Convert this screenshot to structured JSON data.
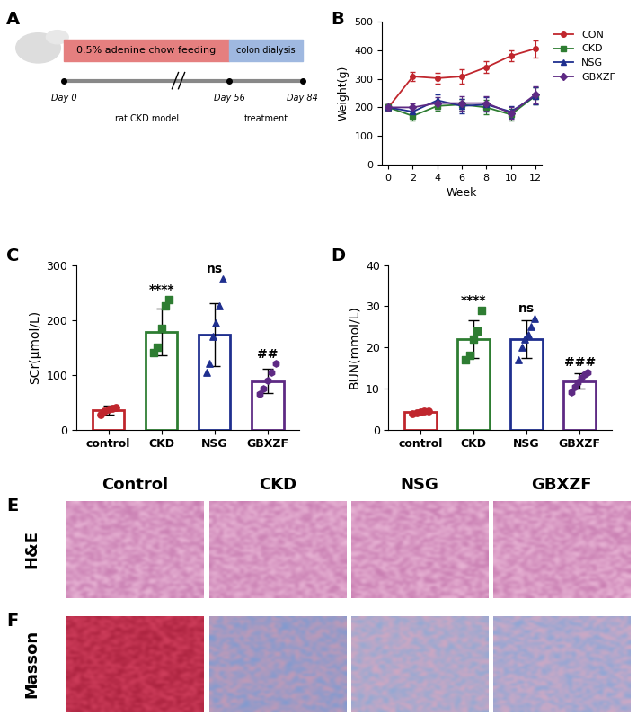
{
  "chart_data": [
    {
      "type": "line",
      "title": "B",
      "x_label": "Week",
      "y_label": "Weight(g)",
      "x": [
        0,
        2,
        4,
        6,
        8,
        10,
        12
      ],
      "xlim": [
        -0.5,
        12.5
      ],
      "xticks": [
        0,
        2,
        4,
        6,
        8,
        10,
        12
      ],
      "ylim": [
        0,
        500
      ],
      "yticks": [
        0,
        100,
        200,
        300,
        400,
        500
      ],
      "legend": "upper left",
      "grid": false,
      "series": [
        {
          "name": "CON",
          "color": "#c0262d",
          "marker": "o",
          "values": [
            200,
            308,
            302,
            308,
            340,
            380,
            405
          ],
          "errors": [
            10,
            15,
            20,
            25,
            20,
            20,
            30
          ]
        },
        {
          "name": "CKD",
          "color": "#2e7d32",
          "marker": "s",
          "values": [
            200,
            170,
            205,
            210,
            200,
            175,
            240
          ],
          "errors": [
            10,
            15,
            15,
            20,
            25,
            20,
            30
          ]
        },
        {
          "name": "NSG",
          "color": "#1f2f8f",
          "marker": "^",
          "values": [
            200,
            185,
            225,
            205,
            210,
            185,
            240
          ],
          "errors": [
            10,
            15,
            20,
            25,
            25,
            20,
            30
          ]
        },
        {
          "name": "GBXZF",
          "color": "#5e2a84",
          "marker": "D",
          "values": [
            200,
            200,
            215,
            215,
            215,
            180,
            245
          ],
          "errors": [
            10,
            15,
            20,
            25,
            25,
            20,
            30
          ]
        }
      ]
    },
    {
      "type": "bar",
      "title": "C",
      "y_label": "SCr(μmol/L)",
      "categories": [
        "control",
        "CKD",
        "NSG",
        "GBXZF"
      ],
      "values": [
        35,
        178,
        173,
        88
      ],
      "errors": [
        8,
        42,
        58,
        22
      ],
      "points": [
        [
          28,
          33,
          37,
          38,
          40
        ],
        [
          140,
          150,
          185,
          225,
          237
        ],
        [
          105,
          120,
          170,
          195,
          225,
          275
        ],
        [
          65,
          75,
          90,
          105,
          120
        ]
      ],
      "colors": [
        "#c0262d",
        "#2e7d32",
        "#1f2f8f",
        "#5e2a84"
      ],
      "ylim": [
        0,
        300
      ],
      "yticks": [
        0,
        100,
        200,
        300
      ],
      "grid": false,
      "annotations": [
        {
          "category": "CKD",
          "text": "****"
        },
        {
          "category": "NSG",
          "text": "ns"
        },
        {
          "category": "GBXZF",
          "text": "##"
        }
      ]
    },
    {
      "type": "bar",
      "title": "D",
      "y_label": "BUN(mmol/L)",
      "categories": [
        "control",
        "CKD",
        "NSG",
        "GBXZF"
      ],
      "values": [
        4.3,
        22,
        22,
        11.8
      ],
      "errors": [
        0.5,
        4.5,
        4.5,
        1.8
      ],
      "points": [
        [
          3.8,
          4.0,
          4.2,
          4.5,
          4.6
        ],
        [
          17,
          18,
          22,
          24,
          29
        ],
        [
          17,
          20,
          22,
          23,
          25,
          27
        ],
        [
          9,
          10.5,
          11.5,
          12.5,
          13.5,
          14
        ]
      ],
      "colors": [
        "#c0262d",
        "#2e7d32",
        "#1f2f8f",
        "#5e2a84"
      ],
      "ylim": [
        0,
        40
      ],
      "yticks": [
        0,
        10,
        20,
        30,
        40
      ],
      "grid": false,
      "annotations": [
        {
          "category": "CKD",
          "text": "****"
        },
        {
          "category": "NSG",
          "text": "ns"
        },
        {
          "category": "GBXZF",
          "text": "###"
        }
      ]
    }
  ],
  "diagram": {
    "panel": "A",
    "phases": [
      {
        "text": "0.5% adenine chow feeding",
        "color": "#e57f7f"
      },
      {
        "text": "colon dialysis",
        "color": "#9fb8e0"
      }
    ],
    "days": [
      "Day 0",
      "Day 56",
      "Day 84"
    ],
    "stages": [
      "rat CKD model",
      "treatment"
    ]
  },
  "histology": {
    "columns": [
      "Control",
      "CKD",
      "NSG",
      "GBXZF"
    ],
    "rows": [
      {
        "panel": "E",
        "label": "H&E"
      },
      {
        "panel": "F",
        "label": "Masson"
      }
    ]
  }
}
